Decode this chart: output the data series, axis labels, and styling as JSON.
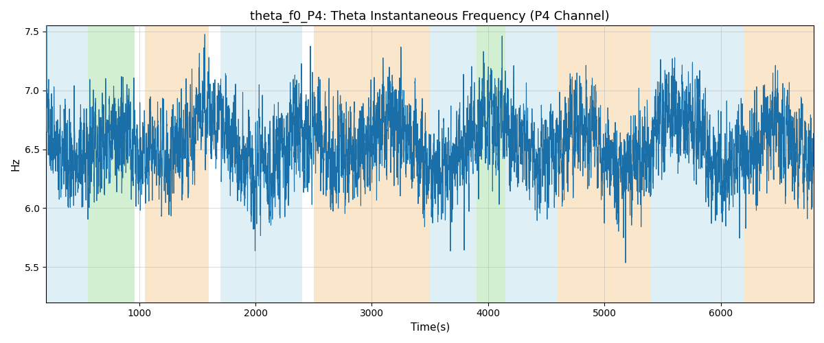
{
  "title": "theta_f0_P4: Theta Instantaneous Frequency (P4 Channel)",
  "xlabel": "Time(s)",
  "ylabel": "Hz",
  "ylim": [
    5.2,
    7.55
  ],
  "xlim": [
    200,
    6800
  ],
  "line_color": "#1a6fa8",
  "line_width": 0.8,
  "figsize": [
    12.0,
    5.0
  ],
  "dpi": 100,
  "title_fontsize": 13,
  "label_fontsize": 11,
  "bands": [
    {
      "start": 200,
      "end": 560,
      "color": "#add8e6",
      "alpha": 0.4
    },
    {
      "start": 560,
      "end": 960,
      "color": "#90d890",
      "alpha": 0.4
    },
    {
      "start": 1050,
      "end": 1600,
      "color": "#f5c98a",
      "alpha": 0.45
    },
    {
      "start": 1700,
      "end": 2400,
      "color": "#add8e6",
      "alpha": 0.4
    },
    {
      "start": 2500,
      "end": 3500,
      "color": "#f5c98a",
      "alpha": 0.45
    },
    {
      "start": 3500,
      "end": 3900,
      "color": "#add8e6",
      "alpha": 0.4
    },
    {
      "start": 3900,
      "end": 4150,
      "color": "#90d890",
      "alpha": 0.4
    },
    {
      "start": 4150,
      "end": 4600,
      "color": "#add8e6",
      "alpha": 0.4
    },
    {
      "start": 4600,
      "end": 5400,
      "color": "#f5c98a",
      "alpha": 0.45
    },
    {
      "start": 5400,
      "end": 6200,
      "color": "#add8e6",
      "alpha": 0.4
    },
    {
      "start": 6200,
      "end": 6800,
      "color": "#f5c98a",
      "alpha": 0.45
    }
  ],
  "signal_seed": 137,
  "time_start": 200,
  "time_end": 6800,
  "n_points": 6600,
  "freq_mean": 6.55,
  "slow_amp": 0.18,
  "slow_period": 800,
  "fast_std": 0.22,
  "ar_coef": 0.6
}
